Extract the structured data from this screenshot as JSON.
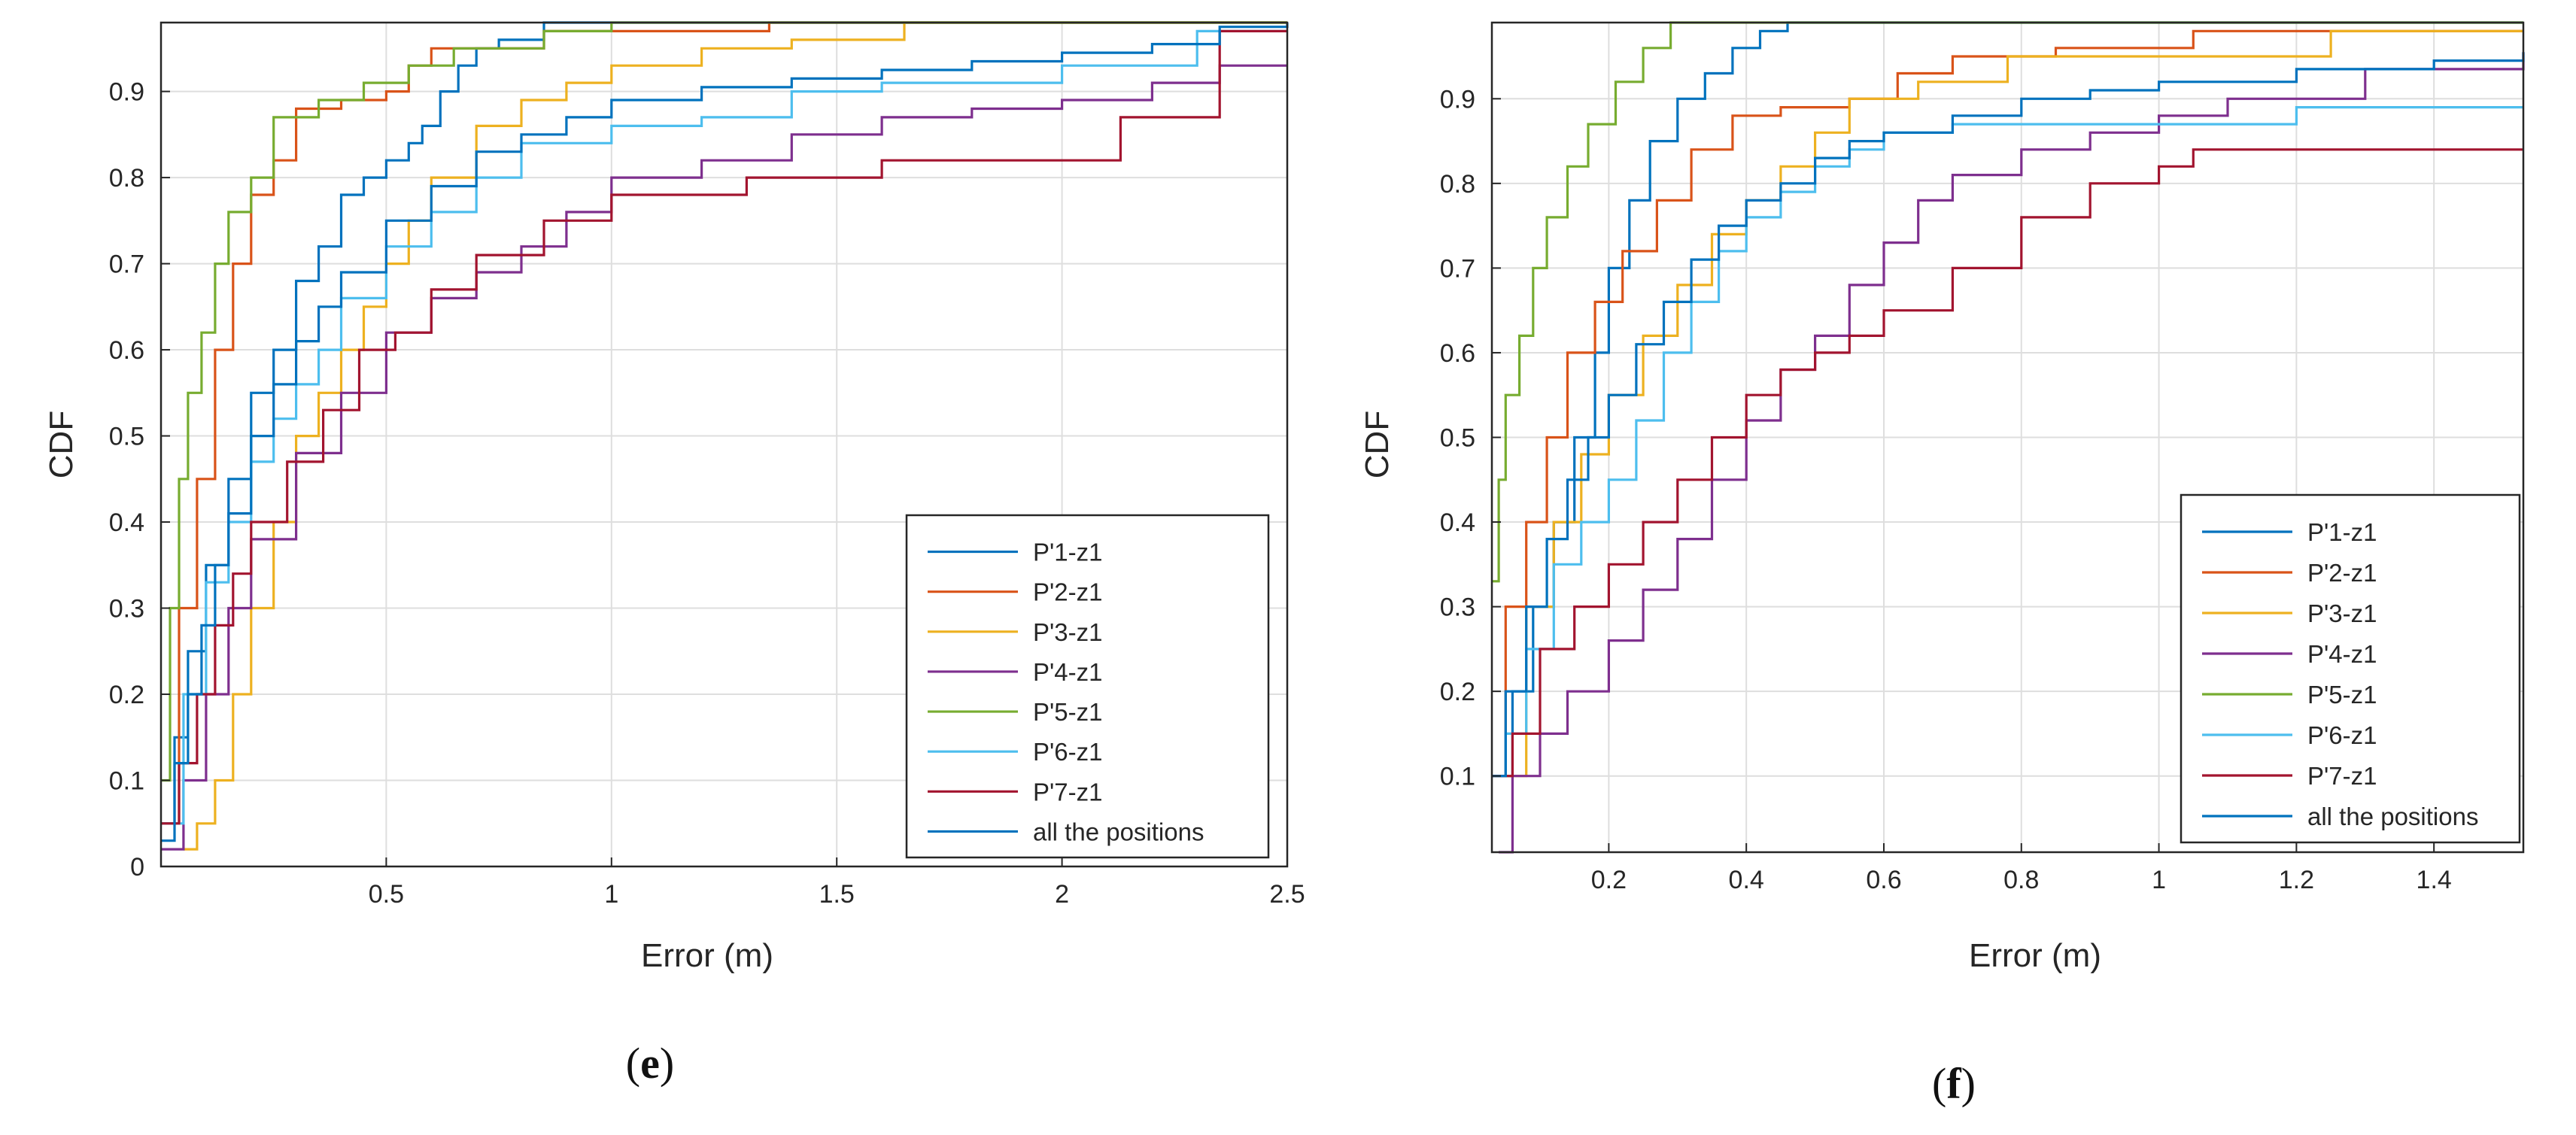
{
  "figure": {
    "panel_e_caption": {
      "open": "(",
      "letter": "e",
      "close": ")"
    },
    "panel_f_caption": {
      "open": "(",
      "letter": "f",
      "close": ")"
    }
  },
  "chart_data": [
    {
      "id": "e",
      "type": "line",
      "step": true,
      "xlabel": "Error (m)",
      "ylabel": "CDF",
      "xlim": [
        0,
        2.5
      ],
      "ylim": [
        0,
        0.98
      ],
      "xticks": [
        0.5,
        1,
        1.5,
        2,
        2.5
      ],
      "xtick_labels": [
        "0.5",
        "1",
        "1.5",
        "2",
        "2.5"
      ],
      "yticks": [
        0,
        0.1,
        0.2,
        0.3,
        0.4,
        0.5,
        0.6,
        0.7,
        0.8,
        0.9
      ],
      "ytick_labels": [
        "0",
        "0.1",
        "0.2",
        "0.3",
        "0.4",
        "0.5",
        "0.6",
        "0.7",
        "0.8",
        "0.9"
      ],
      "grid": true,
      "legend_position": "bottom-right",
      "series": [
        {
          "name": "P'1-z1",
          "color": "#0072BD",
          "x": [
            0,
            0.03,
            0.06,
            0.1,
            0.15,
            0.2,
            0.25,
            0.3,
            0.35,
            0.4,
            0.45,
            0.5,
            0.55,
            0.58,
            0.62,
            0.66,
            0.7,
            0.75,
            0.85,
            2.5
          ],
          "y": [
            0.05,
            0.15,
            0.25,
            0.35,
            0.45,
            0.55,
            0.6,
            0.68,
            0.72,
            0.78,
            0.8,
            0.82,
            0.84,
            0.86,
            0.9,
            0.93,
            0.95,
            0.96,
            0.98,
            0.98
          ]
        },
        {
          "name": "P'2-z1",
          "color": "#D95319",
          "x": [
            0,
            0.04,
            0.08,
            0.12,
            0.16,
            0.2,
            0.25,
            0.3,
            0.4,
            0.5,
            0.55,
            0.6,
            0.85,
            1.35,
            2.5
          ],
          "y": [
            0.05,
            0.3,
            0.45,
            0.6,
            0.7,
            0.78,
            0.82,
            0.88,
            0.89,
            0.9,
            0.93,
            0.95,
            0.97,
            0.98,
            0.98
          ]
        },
        {
          "name": "P'3-z1",
          "color": "#EDB120",
          "x": [
            0.05,
            0.08,
            0.12,
            0.16,
            0.2,
            0.25,
            0.3,
            0.35,
            0.4,
            0.45,
            0.5,
            0.55,
            0.6,
            0.7,
            0.8,
            0.9,
            1.0,
            1.2,
            1.4,
            1.65,
            2.5
          ],
          "y": [
            0.02,
            0.05,
            0.1,
            0.2,
            0.3,
            0.4,
            0.5,
            0.55,
            0.6,
            0.65,
            0.7,
            0.75,
            0.8,
            0.86,
            0.89,
            0.91,
            0.93,
            0.95,
            0.96,
            0.98,
            0.98
          ]
        },
        {
          "name": "P'4-z1",
          "color": "#7E2F8E",
          "x": [
            0,
            0.05,
            0.1,
            0.15,
            0.2,
            0.3,
            0.4,
            0.5,
            0.6,
            0.7,
            0.8,
            0.9,
            1.0,
            1.2,
            1.4,
            1.6,
            1.8,
            2.0,
            2.2,
            2.35,
            2.5
          ],
          "y": [
            0.02,
            0.1,
            0.2,
            0.3,
            0.38,
            0.48,
            0.55,
            0.62,
            0.66,
            0.69,
            0.72,
            0.76,
            0.8,
            0.82,
            0.85,
            0.87,
            0.88,
            0.89,
            0.91,
            0.93,
            0.93
          ]
        },
        {
          "name": "P'5-z1",
          "color": "#77AC30",
          "x": [
            0,
            0.02,
            0.04,
            0.06,
            0.09,
            0.12,
            0.15,
            0.2,
            0.25,
            0.35,
            0.45,
            0.55,
            0.65,
            0.85,
            1.0,
            2.5
          ],
          "y": [
            0.1,
            0.3,
            0.45,
            0.55,
            0.62,
            0.7,
            0.76,
            0.8,
            0.87,
            0.89,
            0.91,
            0.93,
            0.95,
            0.97,
            0.98,
            0.98
          ]
        },
        {
          "name": "P'6-z1",
          "color": "#4DBEEE",
          "x": [
            0,
            0.05,
            0.1,
            0.15,
            0.2,
            0.25,
            0.3,
            0.35,
            0.4,
            0.5,
            0.6,
            0.7,
            0.8,
            1.0,
            1.2,
            1.4,
            1.6,
            2.0,
            2.3,
            2.5
          ],
          "y": [
            0.05,
            0.2,
            0.33,
            0.4,
            0.47,
            0.52,
            0.56,
            0.6,
            0.66,
            0.72,
            0.76,
            0.8,
            0.84,
            0.86,
            0.87,
            0.9,
            0.91,
            0.93,
            0.97,
            0.97
          ]
        },
        {
          "name": "P'7-z1",
          "color": "#A2142F",
          "x": [
            0,
            0.04,
            0.08,
            0.12,
            0.16,
            0.2,
            0.28,
            0.36,
            0.44,
            0.52,
            0.6,
            0.7,
            0.85,
            1.0,
            1.3,
            1.6,
            2.13,
            2.35,
            2.5
          ],
          "y": [
            0.05,
            0.12,
            0.2,
            0.28,
            0.34,
            0.4,
            0.47,
            0.53,
            0.6,
            0.62,
            0.67,
            0.71,
            0.75,
            0.78,
            0.8,
            0.82,
            0.87,
            0.97,
            0.97
          ]
        },
        {
          "name": "all the positions",
          "color": "#0072BD",
          "x": [
            0,
            0.03,
            0.06,
            0.09,
            0.12,
            0.15,
            0.2,
            0.25,
            0.3,
            0.35,
            0.4,
            0.5,
            0.6,
            0.7,
            0.8,
            0.9,
            1.0,
            1.2,
            1.4,
            1.6,
            1.8,
            2.0,
            2.2,
            2.35,
            2.5
          ],
          "y": [
            0.03,
            0.12,
            0.2,
            0.28,
            0.35,
            0.41,
            0.5,
            0.56,
            0.61,
            0.65,
            0.69,
            0.75,
            0.79,
            0.83,
            0.85,
            0.87,
            0.89,
            0.905,
            0.915,
            0.925,
            0.935,
            0.945,
            0.955,
            0.975,
            0.98
          ]
        }
      ]
    },
    {
      "id": "f",
      "type": "line",
      "step": true,
      "xlabel": "Error (m)",
      "ylabel": "CDF",
      "xlim": [
        0.03,
        1.53
      ],
      "ylim": [
        0.01,
        0.99
      ],
      "xticks": [
        0.2,
        0.4,
        0.6,
        0.8,
        1,
        1.2,
        1.4
      ],
      "xtick_labels": [
        "0.2",
        "0.4",
        "0.6",
        "0.8",
        "1",
        "1.2",
        "1.4"
      ],
      "yticks": [
        0.1,
        0.2,
        0.3,
        0.4,
        0.5,
        0.6,
        0.7,
        0.8,
        0.9
      ],
      "ytick_labels": [
        "0.1",
        "0.2",
        "0.3",
        "0.4",
        "0.5",
        "0.6",
        "0.7",
        "0.8",
        "0.9"
      ],
      "grid": true,
      "legend_position": "bottom-right",
      "series": [
        {
          "name": "P'1-z1",
          "color": "#0072BD",
          "x": [
            0.03,
            0.06,
            0.09,
            0.12,
            0.15,
            0.18,
            0.2,
            0.23,
            0.26,
            0.3,
            0.34,
            0.38,
            0.42,
            0.46,
            1.53
          ],
          "y": [
            0.1,
            0.2,
            0.3,
            0.4,
            0.5,
            0.6,
            0.7,
            0.78,
            0.85,
            0.9,
            0.93,
            0.96,
            0.98,
            0.99,
            0.99
          ]
        },
        {
          "name": "P'2-z1",
          "color": "#D95319",
          "x": [
            0.03,
            0.05,
            0.08,
            0.11,
            0.14,
            0.18,
            0.22,
            0.27,
            0.32,
            0.38,
            0.45,
            0.55,
            0.62,
            0.7,
            0.85,
            1.05,
            1.53
          ],
          "y": [
            0.1,
            0.3,
            0.4,
            0.5,
            0.6,
            0.66,
            0.72,
            0.78,
            0.84,
            0.88,
            0.89,
            0.9,
            0.93,
            0.95,
            0.96,
            0.98,
            0.98
          ]
        },
        {
          "name": "P'3-z1",
          "color": "#EDB120",
          "x": [
            0.03,
            0.08,
            0.12,
            0.16,
            0.2,
            0.25,
            0.3,
            0.35,
            0.4,
            0.45,
            0.5,
            0.55,
            0.65,
            0.78,
            1.05,
            1.25,
            1.53
          ],
          "y": [
            0.1,
            0.3,
            0.4,
            0.48,
            0.55,
            0.62,
            0.68,
            0.74,
            0.78,
            0.82,
            0.86,
            0.9,
            0.92,
            0.95,
            0.95,
            0.98,
            0.98
          ]
        },
        {
          "name": "P'4-z1",
          "color": "#7E2F8E",
          "x": [
            0.04,
            0.06,
            0.1,
            0.14,
            0.2,
            0.25,
            0.3,
            0.35,
            0.4,
            0.45,
            0.5,
            0.55,
            0.6,
            0.65,
            0.7,
            0.8,
            0.9,
            1.0,
            1.1,
            1.3,
            1.53
          ],
          "y": [
            0.01,
            0.1,
            0.15,
            0.2,
            0.26,
            0.32,
            0.38,
            0.45,
            0.52,
            0.58,
            0.62,
            0.68,
            0.73,
            0.78,
            0.81,
            0.84,
            0.86,
            0.88,
            0.9,
            0.935,
            0.955
          ]
        },
        {
          "name": "P'5-z1",
          "color": "#77AC30",
          "x": [
            0.03,
            0.04,
            0.05,
            0.07,
            0.09,
            0.11,
            0.14,
            0.17,
            0.21,
            0.25,
            0.29,
            1.53
          ],
          "y": [
            0.33,
            0.45,
            0.55,
            0.62,
            0.7,
            0.76,
            0.82,
            0.87,
            0.92,
            0.96,
            0.99,
            0.99
          ]
        },
        {
          "name": "P'6-z1",
          "color": "#4DBEEE",
          "x": [
            0.03,
            0.05,
            0.08,
            0.12,
            0.16,
            0.2,
            0.24,
            0.28,
            0.32,
            0.36,
            0.4,
            0.45,
            0.5,
            0.55,
            0.6,
            0.7,
            0.8,
            1.0,
            1.2,
            1.53
          ],
          "y": [
            0.1,
            0.15,
            0.25,
            0.35,
            0.4,
            0.45,
            0.52,
            0.6,
            0.66,
            0.72,
            0.76,
            0.79,
            0.82,
            0.84,
            0.86,
            0.87,
            0.87,
            0.87,
            0.89,
            0.89
          ]
        },
        {
          "name": "P'7-z1",
          "color": "#A2142F",
          "x": [
            0.03,
            0.06,
            0.1,
            0.15,
            0.2,
            0.25,
            0.3,
            0.35,
            0.4,
            0.45,
            0.5,
            0.55,
            0.6,
            0.7,
            0.8,
            0.9,
            1.0,
            1.05,
            1.53
          ],
          "y": [
            0.1,
            0.15,
            0.25,
            0.3,
            0.35,
            0.4,
            0.45,
            0.5,
            0.55,
            0.58,
            0.6,
            0.62,
            0.65,
            0.7,
            0.76,
            0.8,
            0.82,
            0.84,
            0.84
          ]
        },
        {
          "name": "all the positions",
          "color": "#0072BD",
          "x": [
            0.03,
            0.05,
            0.08,
            0.11,
            0.14,
            0.17,
            0.2,
            0.24,
            0.28,
            0.32,
            0.36,
            0.4,
            0.45,
            0.5,
            0.55,
            0.6,
            0.7,
            0.8,
            0.9,
            1.0,
            1.2,
            1.4,
            1.53
          ],
          "y": [
            0.1,
            0.2,
            0.3,
            0.38,
            0.45,
            0.5,
            0.55,
            0.61,
            0.66,
            0.71,
            0.75,
            0.78,
            0.8,
            0.83,
            0.85,
            0.86,
            0.88,
            0.9,
            0.91,
            0.92,
            0.935,
            0.945,
            0.955
          ]
        }
      ]
    }
  ]
}
